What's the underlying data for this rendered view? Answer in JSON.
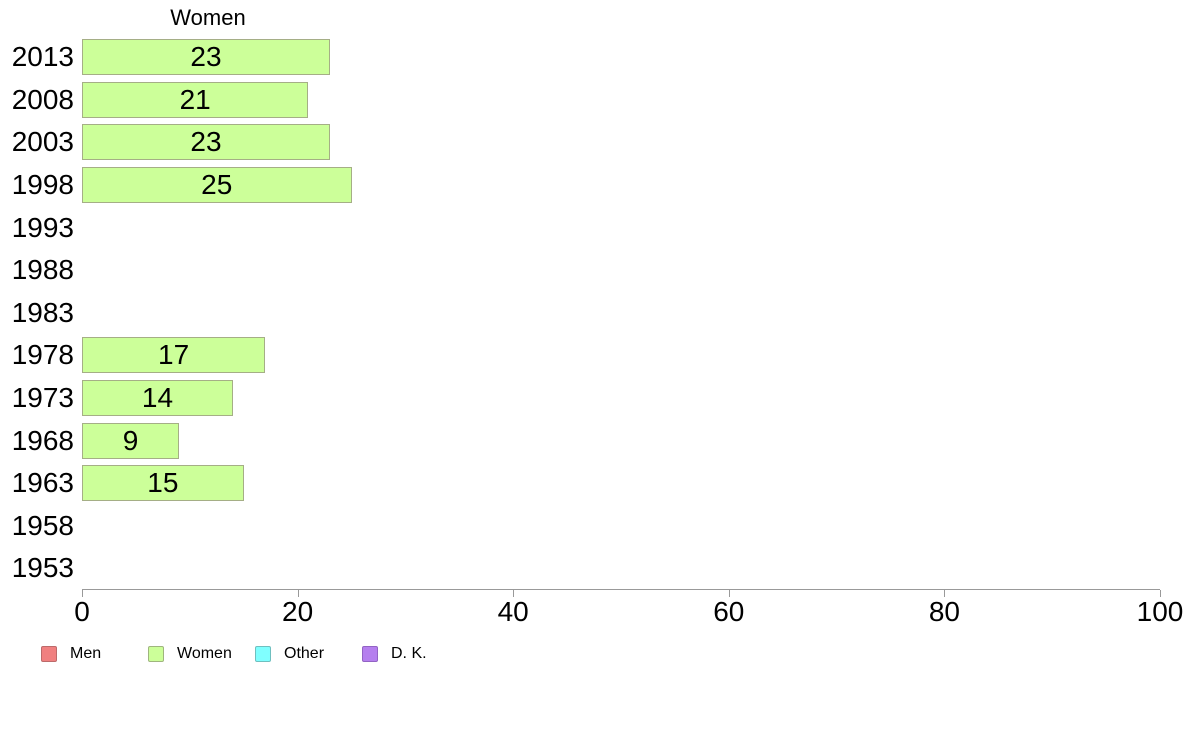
{
  "chart_data": {
    "type": "bar",
    "orientation": "horizontal",
    "title": "Women",
    "categories": [
      "2013",
      "2008",
      "2003",
      "1998",
      "1993",
      "1988",
      "1983",
      "1978",
      "1973",
      "1968",
      "1963",
      "1958",
      "1953"
    ],
    "values": [
      23,
      21,
      23,
      25,
      0,
      0,
      0,
      17,
      14,
      9,
      15,
      0,
      0
    ],
    "value_labels": "inside-center",
    "xlim": [
      0,
      100
    ],
    "x_ticks": [
      0,
      20,
      40,
      60,
      80,
      100
    ],
    "grid": false,
    "bar_fill": "#ccff99",
    "bar_border": "#a5ae86",
    "axis_color": "#999999",
    "text_color": "#000000",
    "legend_position": "bottom-left",
    "legend": [
      {
        "label": "Men",
        "fill": "#f08080",
        "border": "#bc6a6a"
      },
      {
        "label": "Women",
        "fill": "#ccff99",
        "border": "#9fb57e"
      },
      {
        "label": "Other",
        "fill": "#80ffff",
        "border": "#6fbfbf"
      },
      {
        "label": "D. K.",
        "fill": "#b57fee",
        "border": "#9263c4"
      }
    ]
  }
}
